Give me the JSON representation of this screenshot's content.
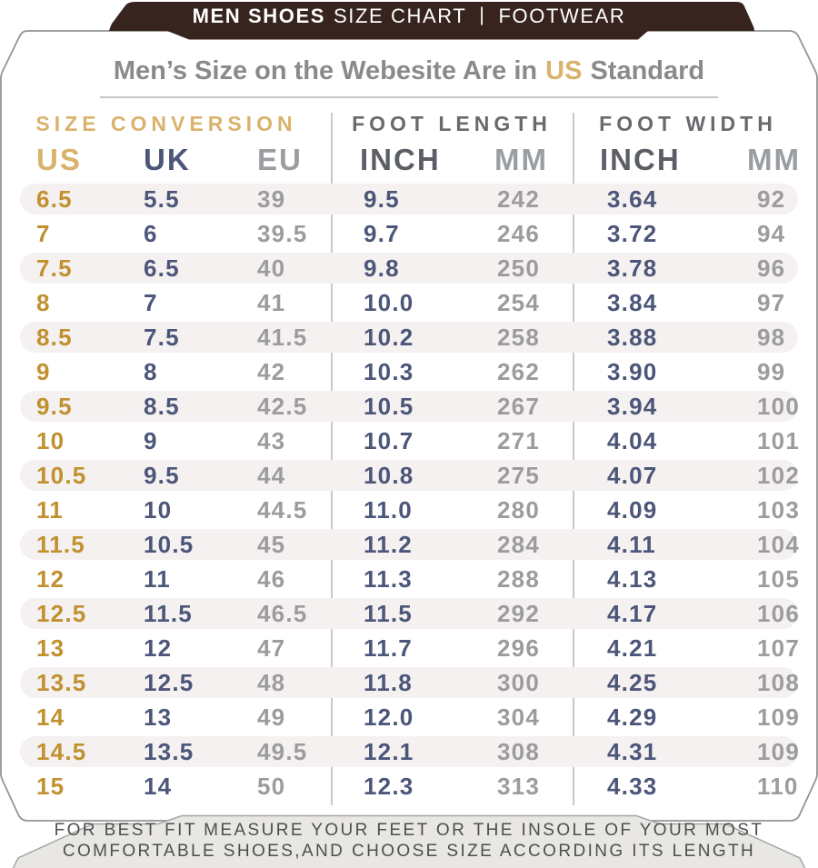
{
  "banner": {
    "brand_bold": "MEN SHOES",
    "brand_rest": "SIZE CHART",
    "separator": "|",
    "category": "FOOTWEAR"
  },
  "title": {
    "prefix": "Men’s Size on the Webesite Are in",
    "highlight": "US",
    "suffix": "Standard"
  },
  "footer": {
    "line1": "FOR BEST FIT MEASURE YOUR FEET OR THE INSOLE OF YOUR MOST",
    "line2": "COMFORTABLE SHOES,AND CHOOSE SIZE ACCORDING ITS LENGTH"
  },
  "chart_data": {
    "type": "table",
    "title": "MEN SHOES SIZE CHART | FOOTWEAR",
    "subtitle": "Men’s Size on the Webesite Are in US Standard",
    "column_groups": [
      "SIZE CONVERSION",
      "FOOT LENGTH",
      "FOOT WIDTH"
    ],
    "columns": [
      "US",
      "UK",
      "EU",
      "INCH",
      "MM",
      "INCH",
      "MM"
    ],
    "rows": [
      [
        "6.5",
        "5.5",
        "39",
        "9.5",
        "242",
        "3.64",
        "92"
      ],
      [
        "7",
        "6",
        "39.5",
        "9.7",
        "246",
        "3.72",
        "94"
      ],
      [
        "7.5",
        "6.5",
        "40",
        "9.8",
        "250",
        "3.78",
        "96"
      ],
      [
        "8",
        "7",
        "41",
        "10.0",
        "254",
        "3.84",
        "97"
      ],
      [
        "8.5",
        "7.5",
        "41.5",
        "10.2",
        "258",
        "3.88",
        "98"
      ],
      [
        "9",
        "8",
        "42",
        "10.3",
        "262",
        "3.90",
        "99"
      ],
      [
        "9.5",
        "8.5",
        "42.5",
        "10.5",
        "267",
        "3.94",
        "100"
      ],
      [
        "10",
        "9",
        "43",
        "10.7",
        "271",
        "4.04",
        "101"
      ],
      [
        "10.5",
        "9.5",
        "44",
        "10.8",
        "275",
        "4.07",
        "102"
      ],
      [
        "11",
        "10",
        "44.5",
        "11.0",
        "280",
        "4.09",
        "103"
      ],
      [
        "11.5",
        "10.5",
        "45",
        "11.2",
        "284",
        "4.11",
        "104"
      ],
      [
        "12",
        "11",
        "46",
        "11.3",
        "288",
        "4.13",
        "105"
      ],
      [
        "12.5",
        "11.5",
        "46.5",
        "11.5",
        "292",
        "4.17",
        "106"
      ],
      [
        "13",
        "12",
        "47",
        "11.7",
        "296",
        "4.21",
        "107"
      ],
      [
        "13.5",
        "12.5",
        "48",
        "11.8",
        "300",
        "4.25",
        "108"
      ],
      [
        "14",
        "13",
        "49",
        "12.0",
        "304",
        "4.29",
        "109"
      ],
      [
        "14.5",
        "13.5",
        "49.5",
        "12.1",
        "308",
        "4.31",
        "109"
      ],
      [
        "15",
        "14",
        "50",
        "12.3",
        "313",
        "4.33",
        "110"
      ]
    ]
  },
  "colors": {
    "banner_bg": "#38241e",
    "card_border": "#949494",
    "gold": "#c1902f",
    "gold_light": "#d9b26c",
    "navy": "#4c5679",
    "gray": "#9c9c9c",
    "header_dark": "#5b5e64",
    "header_gray": "#9a9da1",
    "group_gray": "#696a6e",
    "title_gray": "#8a8a8a",
    "stripe": "#f4f1f0",
    "rule": "#c6c6c6",
    "divider": "#c9c9c9",
    "footer_bg": "#e9e7e4",
    "footer_border": "#a6a6a6",
    "footer_text": "#4e4e4e"
  }
}
